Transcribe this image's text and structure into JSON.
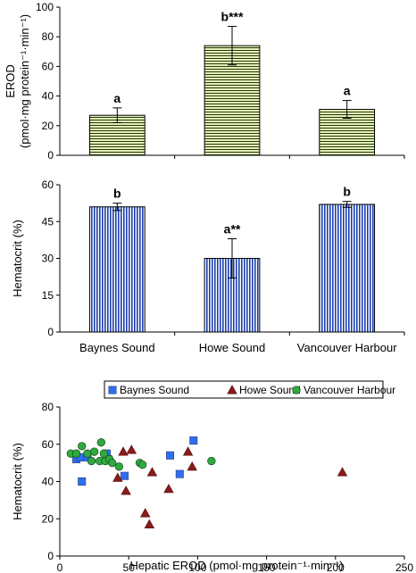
{
  "chart_data": [
    {
      "type": "bar",
      "categories": [
        "Baynes Sound",
        "Howe Sound",
        "Vancouver Harbour"
      ],
      "values": [
        27,
        74,
        31
      ],
      "errors": [
        5,
        13,
        6
      ],
      "annotations": [
        "a",
        "b***",
        "a"
      ],
      "ylabel": [
        "EROD",
        "(pmol·mg protein⁻¹·min⁻¹)"
      ],
      "ylim": [
        0,
        100
      ],
      "yticks": [
        0,
        20,
        40,
        60,
        80,
        100
      ],
      "fill": "#e8f0b8",
      "stripe": "#1f3a0c",
      "pattern": "horizontal-stripes"
    },
    {
      "type": "bar",
      "categories": [
        "Baynes Sound",
        "Howe Sound",
        "Vancouver Harbour"
      ],
      "values": [
        51,
        30,
        52
      ],
      "errors": [
        1.5,
        8,
        1.2
      ],
      "annotations": [
        "b",
        "a**",
        "b"
      ],
      "ylabel": "Hematocrit (%)",
      "ylim": [
        0,
        60
      ],
      "yticks": [
        0,
        15,
        30,
        45,
        60
      ],
      "fill": "#ffffff",
      "stripe": "#1c3fae",
      "pattern": "vertical-stripes"
    },
    {
      "type": "scatter",
      "xlabel": "Hepatic EROD (pmol·mg protein⁻¹·min⁻¹)",
      "ylabel": "Hematocrit (%)",
      "xlim": [
        0,
        250
      ],
      "ylim": [
        0,
        80
      ],
      "xticks": [
        0,
        50,
        100,
        150,
        200,
        250
      ],
      "yticks": [
        0,
        20,
        40,
        60,
        80
      ],
      "legend_position": "top",
      "series": [
        {
          "name": "Baynes Sound",
          "marker": "square",
          "color": "#2e6ff0",
          "points": [
            [
              12,
              52
            ],
            [
              15,
              53
            ],
            [
              16,
              40
            ],
            [
              20,
              53
            ],
            [
              34,
              55
            ],
            [
              35,
              52
            ],
            [
              47,
              43
            ],
            [
              80,
              54
            ],
            [
              87,
              44
            ],
            [
              97,
              62
            ]
          ]
        },
        {
          "name": "Howe Sound",
          "marker": "triangle",
          "color": "#8b1a1a",
          "points": [
            [
              42,
              42
            ],
            [
              46,
              56
            ],
            [
              48,
              35
            ],
            [
              52,
              57
            ],
            [
              62,
              23
            ],
            [
              65,
              17
            ],
            [
              67,
              45
            ],
            [
              79,
              36
            ],
            [
              93,
              56
            ],
            [
              96,
              48
            ],
            [
              205,
              45
            ]
          ]
        },
        {
          "name": "Vancouver Harbour",
          "marker": "circle",
          "color": "#2faa3f",
          "points": [
            [
              8,
              55
            ],
            [
              12,
              55
            ],
            [
              16,
              59
            ],
            [
              20,
              55
            ],
            [
              23,
              51
            ],
            [
              25,
              56
            ],
            [
              29,
              51
            ],
            [
              30,
              61
            ],
            [
              32,
              55
            ],
            [
              33,
              51
            ],
            [
              36,
              52
            ],
            [
              38,
              50
            ],
            [
              43,
              48
            ],
            [
              58,
              50
            ],
            [
              60,
              49
            ],
            [
              110,
              51
            ]
          ]
        }
      ]
    }
  ]
}
